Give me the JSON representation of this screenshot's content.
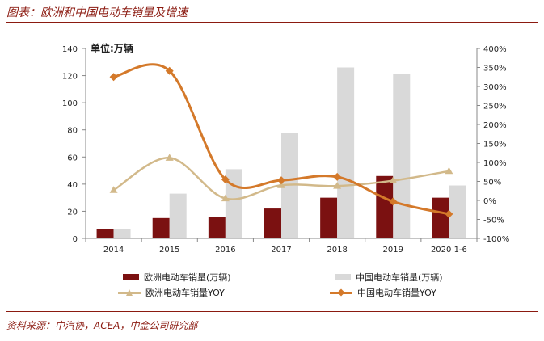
{
  "page": {
    "title": "图表：欧洲和中国电动车销量及增速",
    "unit_label": "单位:万辆",
    "source": "资料来源：中汽协，ACEA，中金公司研究部"
  },
  "colors": {
    "europe_bar": "#7b1111",
    "china_bar": "#d9d9d9",
    "europe_yoy": "#d2b98a",
    "china_yoy": "#d4792a",
    "accent": "#8b1a10"
  },
  "chart_data": {
    "type": "bar",
    "categories": [
      "2014",
      "2015",
      "2016",
      "2017",
      "2018",
      "2019",
      "2020 1-6"
    ],
    "series": [
      {
        "name": "欧洲电动车销量(万辆)",
        "kind": "bar",
        "axis": "left",
        "values": [
          7,
          15,
          16,
          22,
          30,
          46,
          30
        ]
      },
      {
        "name": "中国电动车销量(万辆)",
        "kind": "bar",
        "axis": "left",
        "values": [
          7,
          33,
          51,
          78,
          126,
          121,
          39
        ]
      },
      {
        "name": "欧洲电动车销量YOY",
        "kind": "line",
        "axis": "right",
        "values": [
          27,
          112,
          5,
          40,
          38,
          52,
          77
        ]
      },
      {
        "name": "中国电动车销量YOY",
        "kind": "line",
        "axis": "right",
        "values": [
          325,
          341,
          55,
          53,
          62,
          -3,
          -36
        ]
      }
    ],
    "y_left": {
      "min": 0,
      "max": 140,
      "ticks": [
        "0",
        "20",
        "40",
        "60",
        "80",
        "100",
        "120",
        "140"
      ]
    },
    "y_right": {
      "min": -100,
      "max": 400,
      "ticks": [
        "-100%",
        "-50%",
        "0%",
        "50%",
        "100%",
        "150%",
        "200%",
        "250%",
        "300%",
        "350%",
        "400%"
      ]
    },
    "xlabel": "",
    "ylabel": "",
    "grid": false,
    "legend_position": "bottom"
  }
}
